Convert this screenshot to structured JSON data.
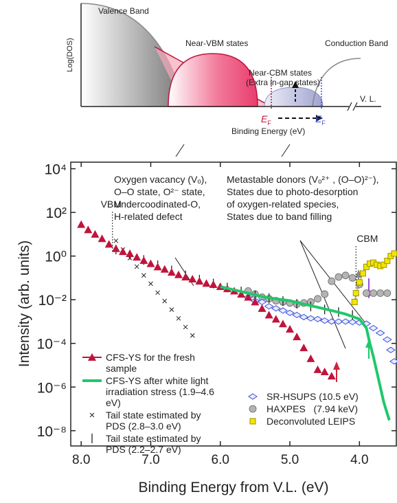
{
  "diagram": {
    "valence_band": "Valence Band",
    "near_vbm": "Near-VBM states",
    "near_cbm": "Near-CBM states",
    "near_cbm_note": "(Extra in-gap states)",
    "conduction_band": "Conduction Band",
    "y_axis": "Log(DOS)",
    "x_axis": "Binding Energy (eV)",
    "vl": "V. L.",
    "ef": {
      "main": "E",
      "sub": "F"
    }
  },
  "chart_data": {
    "type": "scatter",
    "x_label": "Binding Energy from V.L. (eV)",
    "y_label": "Intensity (arb. units)",
    "xlim": [
      8.15,
      3.47
    ],
    "xticks": [
      {
        "value": 8,
        "label": "8.0"
      },
      {
        "value": 7,
        "label": "7.0"
      },
      {
        "value": 6,
        "label": "6.0"
      },
      {
        "value": 5,
        "label": "5.0"
      },
      {
        "value": 4,
        "label": "4.0"
      }
    ],
    "ylog": true,
    "ylim": [
      2e-09,
      20000
    ],
    "yticks": [
      {
        "value": 10000,
        "label": "10⁴"
      },
      {
        "value": 100,
        "label": "10²"
      },
      {
        "value": 1,
        "label": "10⁰"
      },
      {
        "value": 0.01,
        "label": "10⁻²"
      },
      {
        "value": 0.0001,
        "label": "10⁻⁴"
      },
      {
        "value": 1e-06,
        "label": "10⁻⁶"
      },
      {
        "value": 1e-08,
        "label": "10⁻⁸"
      }
    ],
    "reference_lines": [
      {
        "label": "VBM",
        "x": 7.55
      },
      {
        "label": "CBM",
        "x": 4.05
      }
    ],
    "annotations": [
      {
        "lines": [
          "Oxygen vacancy (Vₒ),",
          "O–O state, O²⁻ state,",
          "Undercoodinated-O,",
          "H-related defect"
        ]
      },
      {
        "lines": [
          "Metastable donors (Vₒ²⁺ , (O–O)²⁻),",
          "States due to photo-desorption",
          "of oxygen-related species,",
          "States due to band filling"
        ]
      }
    ],
    "series": [
      {
        "name": "CFS-YS for the fresh sample",
        "marker": "triangle",
        "color": "#c0143c",
        "x": [
          8.0,
          7.9,
          7.8,
          7.7,
          7.6,
          7.5,
          7.4,
          7.3,
          7.2,
          7.1,
          7.0,
          6.9,
          6.8,
          6.7,
          6.6,
          6.5,
          6.4,
          6.3,
          6.2,
          6.1,
          6.0,
          5.9,
          5.8,
          5.7,
          5.6,
          5.5,
          5.4,
          5.3,
          5.2,
          5.1,
          5.0,
          4.9,
          4.8,
          4.7,
          4.6,
          4.5,
          4.4
        ],
        "values": [
          28,
          16,
          10,
          6.3,
          3.5,
          2.2,
          1.6,
          1.3,
          0.89,
          0.63,
          0.45,
          0.32,
          0.25,
          0.18,
          0.14,
          0.11,
          0.089,
          0.071,
          0.056,
          0.05,
          0.04,
          0.032,
          0.025,
          0.018,
          0.013,
          0.0079,
          0.004,
          0.002,
          0.0013,
          0.00079,
          0.00045,
          0.0002,
          6.3e-05,
          2e-05,
          6.3e-06,
          5e-06,
          3.2e-06
        ]
      },
      {
        "name": "CFS-YS after white light irradiation stress (1.9–4.6 eV)",
        "marker": "line",
        "color": "#1fc86a",
        "x": [
          6.0,
          5.8,
          5.6,
          5.4,
          5.2,
          5.0,
          4.8,
          4.6,
          4.4,
          4.2,
          4.0,
          3.9,
          3.85,
          3.8,
          3.75,
          3.7,
          3.65,
          3.6,
          3.57
        ],
        "values": [
          0.04,
          0.028,
          0.02,
          0.014,
          0.011,
          0.009,
          0.0063,
          0.0045,
          0.0032,
          0.0022,
          0.0013,
          0.0005,
          0.0001,
          2.5e-05,
          5e-06,
          1e-06,
          2e-07,
          6e-08,
          3e-08
        ]
      },
      {
        "name": "Tail state estimated by PDS (2.8–3.0 eV)",
        "marker": "x",
        "color": "#222222",
        "x": [
          7.5,
          7.4,
          7.3,
          7.2,
          7.1,
          7.0,
          6.9,
          6.8,
          6.7,
          6.6,
          6.5,
          6.4
        ],
        "values": [
          5.0,
          2.0,
          0.81,
          0.33,
          0.13,
          0.054,
          0.021,
          0.0087,
          0.0035,
          0.0014,
          0.00056,
          0.00023
        ]
      },
      {
        "name": "Tail state estimated by PDS (2.2–2.7 eV)",
        "marker": "bar",
        "color": "#222222",
        "x": [
          7.5,
          7.3,
          7.1,
          6.9,
          6.7,
          6.5,
          6.3,
          6.1,
          5.9,
          5.7,
          5.5,
          5.3,
          5.1,
          4.9,
          4.7,
          4.5,
          4.3,
          4.1
        ],
        "values": [
          2.0,
          1.15,
          0.66,
          0.38,
          0.22,
          0.13,
          0.083,
          0.055,
          0.036,
          0.024,
          0.016,
          0.012,
          0.0087,
          0.0065,
          0.0049,
          0.0036,
          0.0027,
          0.002
        ]
      },
      {
        "name": "SR-HSUPS (10.5 eV)",
        "marker": "diamond",
        "color": "#3a4fd8",
        "x": [
          5.6,
          5.5,
          5.4,
          5.3,
          5.2,
          5.1,
          5.0,
          4.9,
          4.8,
          4.7,
          4.6,
          4.5,
          4.4,
          4.3,
          4.2,
          4.1,
          4.0,
          3.9,
          3.8,
          3.7,
          3.6,
          3.55,
          3.5
        ],
        "values": [
          0.013,
          0.0089,
          0.0079,
          0.005,
          0.004,
          0.0032,
          0.0025,
          0.002,
          0.0016,
          0.0014,
          0.0013,
          0.0011,
          0.001,
          0.001,
          0.001,
          0.00095,
          0.0009,
          0.0008,
          0.0005,
          0.0003,
          0.00015,
          5e-05,
          1.5e-05
        ]
      },
      {
        "name": "HAXPES   (7.94 keV)",
        "marker": "circle",
        "color": "#b4b4b4",
        "x": [
          5.6,
          5.5,
          5.4,
          5.3,
          5.2,
          5.1,
          5.0,
          4.9,
          4.8,
          4.7,
          4.6,
          4.5,
          4.4,
          4.3,
          4.2,
          4.1,
          4.0,
          3.9,
          3.8,
          3.7,
          3.6
        ],
        "values": [
          0.025,
          0.018,
          0.013,
          0.011,
          0.009,
          0.0079,
          0.0071,
          0.0063,
          0.0071,
          0.0079,
          0.011,
          0.018,
          0.071,
          0.11,
          0.13,
          0.1,
          0.05,
          0.02,
          0.02,
          0.02,
          0.02
        ]
      },
      {
        "name": "Deconvoluted LEIPS",
        "marker": "square",
        "color": "#f2e600",
        "x": [
          4.07,
          4.05,
          4.0,
          3.95,
          3.9,
          3.85,
          3.8,
          3.75,
          3.7,
          3.65,
          3.6,
          3.55,
          3.5
        ],
        "values": [
          0.0079,
          0.02,
          0.063,
          0.16,
          0.32,
          0.45,
          0.5,
          0.4,
          0.35,
          0.4,
          0.6,
          1.0,
          1.3
        ]
      }
    ]
  }
}
